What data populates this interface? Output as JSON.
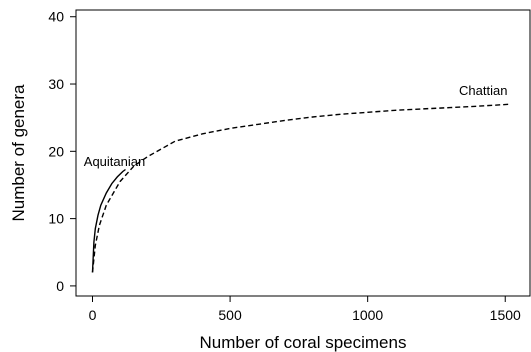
{
  "chart_data": {
    "type": "line",
    "title": "",
    "xlabel": "Number of coral specimens",
    "ylabel": "Number of genera",
    "xlim": [
      -60,
      1590
    ],
    "ylim": [
      -1.5,
      41
    ],
    "xticks": [
      0,
      500,
      1000,
      1500
    ],
    "yticks": [
      0,
      10,
      20,
      30,
      40
    ],
    "grid": false,
    "legend": "none",
    "series": [
      {
        "name": "Aquitanian",
        "style": "solid",
        "color": "#000000",
        "x": [
          0,
          5,
          10,
          20,
          30,
          50,
          70,
          90,
          110,
          120
        ],
        "y": [
          2,
          6.5,
          8.5,
          10.5,
          12,
          13.8,
          15.2,
          16.2,
          17.0,
          17.3
        ]
      },
      {
        "name": "Chattian",
        "style": "dashed",
        "color": "#000000",
        "x": [
          0,
          10,
          25,
          50,
          100,
          150,
          200,
          300,
          400,
          500,
          600,
          700,
          800,
          900,
          1000,
          1100,
          1200,
          1300,
          1400,
          1520
        ],
        "y": [
          2,
          6,
          9,
          12,
          15.5,
          17.8,
          19.2,
          21.5,
          22.6,
          23.4,
          24.0,
          24.6,
          25.1,
          25.5,
          25.8,
          26.1,
          26.3,
          26.5,
          26.7,
          27.0
        ]
      }
    ],
    "annotations": [
      {
        "text": "Aquitanian",
        "x": 80,
        "y": 17.8
      },
      {
        "text": "Chattian",
        "x": 1420,
        "y": 28.4
      }
    ]
  }
}
